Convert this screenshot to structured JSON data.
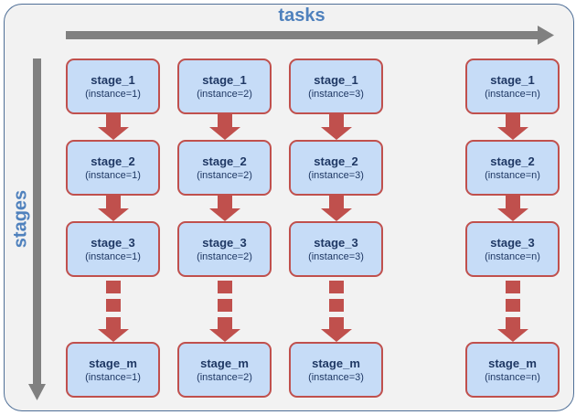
{
  "axes": {
    "horizontal_label": "tasks",
    "vertical_label": "stages"
  },
  "columns": [
    {
      "key": "1",
      "cells": [
        {
          "name": "stage_1",
          "instance": "(instance=1)"
        },
        {
          "name": "stage_2",
          "instance": "(instance=1)"
        },
        {
          "name": "stage_3",
          "instance": "(instance=1)"
        },
        {
          "name": "stage_m",
          "instance": "(instance=1)"
        }
      ]
    },
    {
      "key": "2",
      "cells": [
        {
          "name": "stage_1",
          "instance": "(instance=2)"
        },
        {
          "name": "stage_2",
          "instance": "(instance=2)"
        },
        {
          "name": "stage_3",
          "instance": "(instance=2)"
        },
        {
          "name": "stage_m",
          "instance": "(instance=2)"
        }
      ]
    },
    {
      "key": "3",
      "cells": [
        {
          "name": "stage_1",
          "instance": "(instance=3)"
        },
        {
          "name": "stage_2",
          "instance": "(instance=3)"
        },
        {
          "name": "stage_3",
          "instance": "(instance=3)"
        },
        {
          "name": "stage_m",
          "instance": "(instance=3)"
        }
      ]
    },
    {
      "key": "n",
      "cells": [
        {
          "name": "stage_1",
          "instance": "(instance=n)"
        },
        {
          "name": "stage_2",
          "instance": "(instance=n)"
        },
        {
          "name": "stage_3",
          "instance": "(instance=n)"
        },
        {
          "name": "stage_m",
          "instance": "(instance=n)"
        }
      ]
    }
  ],
  "colors": {
    "frame_border": "#4f6f97",
    "frame_fill": "#f2f2f2",
    "axis_arrow": "#808080",
    "label_text": "#4f81bd",
    "box_fill": "#c6dcf7",
    "box_border": "#c0504d",
    "flow_arrow": "#c0504d",
    "box_text": "#1f3864"
  }
}
